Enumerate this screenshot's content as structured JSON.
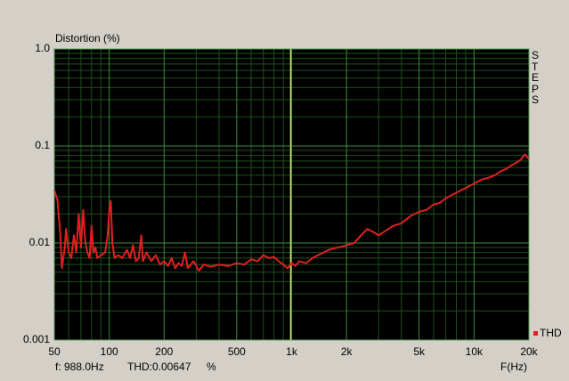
{
  "chart_data": {
    "type": "line",
    "title": "Distortion (%)",
    "x_label": "F(Hz)",
    "side_label": "STEPS",
    "log_x": true,
    "log_y": true,
    "grid": true,
    "xlim": [
      50,
      20000
    ],
    "ylim": [
      0.001,
      1
    ],
    "xticks": [
      50,
      100,
      200,
      500,
      {
        "value": 1000,
        "label": "1k"
      },
      {
        "value": 2000,
        "label": "2k"
      },
      {
        "value": 5000,
        "label": "5k"
      },
      {
        "value": 10000,
        "label": "10k"
      },
      {
        "value": 20000,
        "label": "20k"
      }
    ],
    "yticks": [
      0.001,
      0.01,
      0.1,
      {
        "value": 1,
        "label": "1.0"
      }
    ],
    "xminorticks": [
      60,
      70,
      80,
      90,
      300,
      400,
      600,
      700,
      800,
      900,
      3000,
      4000,
      6000,
      7000,
      8000,
      9000
    ],
    "yminorticks": [
      0.002,
      0.003,
      0.004,
      0.005,
      0.006,
      0.007,
      0.008,
      0.009,
      0.02,
      0.03,
      0.04,
      0.05,
      0.06,
      0.07,
      0.08,
      0.09,
      0.2,
      0.3,
      0.4,
      0.5,
      0.6,
      0.7,
      0.8,
      0.9
    ],
    "cursor_x": 988,
    "status": {
      "freq": "f: 988.0Hz",
      "thd": "THD:0.00647",
      "unit": "%"
    },
    "x": [
      50,
      52,
      54,
      55,
      57,
      58,
      60,
      62,
      64,
      66,
      68,
      70,
      72,
      74,
      76,
      78,
      80,
      82,
      84,
      86,
      90,
      95,
      98,
      100,
      102,
      104,
      107,
      112,
      118,
      125,
      130,
      135,
      140,
      145,
      150,
      153,
      160,
      170,
      180,
      190,
      200,
      210,
      220,
      230,
      240,
      250,
      260,
      270,
      290,
      310,
      330,
      360,
      400,
      450,
      500,
      550,
      600,
      650,
      700,
      750,
      800,
      850,
      900,
      950,
      1000,
      1050,
      1100,
      1200,
      1300,
      1400,
      1500,
      1600,
      1700,
      1800,
      1900,
      2000,
      2200,
      2400,
      2600,
      2800,
      3000,
      3300,
      3600,
      4000,
      4500,
      5000,
      5500,
      6000,
      6500,
      7000,
      8000,
      9000,
      10000,
      11000,
      12000,
      13000,
      14000,
      15000,
      16000,
      17000,
      18000,
      19000,
      20000
    ],
    "series": [
      {
        "name": "THD",
        "color": "#e02020",
        "values": [
          0.035,
          0.028,
          0.012,
          0.0055,
          0.009,
          0.014,
          0.008,
          0.007,
          0.012,
          0.008,
          0.02,
          0.009,
          0.022,
          0.01,
          0.008,
          0.007,
          0.015,
          0.008,
          0.009,
          0.007,
          0.0075,
          0.008,
          0.012,
          0.022,
          0.027,
          0.01,
          0.007,
          0.0075,
          0.007,
          0.0085,
          0.007,
          0.0095,
          0.0065,
          0.007,
          0.012,
          0.0065,
          0.008,
          0.0065,
          0.0075,
          0.006,
          0.0065,
          0.0058,
          0.007,
          0.0055,
          0.0062,
          0.0058,
          0.008,
          0.0055,
          0.0065,
          0.0052,
          0.006,
          0.0057,
          0.006,
          0.0058,
          0.0062,
          0.006,
          0.0068,
          0.0065,
          0.0075,
          0.007,
          0.0072,
          0.0065,
          0.006,
          0.0055,
          0.0062,
          0.0058,
          0.0065,
          0.0062,
          0.007,
          0.0075,
          0.008,
          0.0085,
          0.0088,
          0.009,
          0.0092,
          0.0095,
          0.01,
          0.012,
          0.014,
          0.013,
          0.012,
          0.0135,
          0.015,
          0.016,
          0.019,
          0.021,
          0.022,
          0.025,
          0.026,
          0.029,
          0.033,
          0.037,
          0.041,
          0.045,
          0.047,
          0.05,
          0.055,
          0.058,
          0.063,
          0.067,
          0.072,
          0.082,
          0.073
        ]
      }
    ]
  }
}
